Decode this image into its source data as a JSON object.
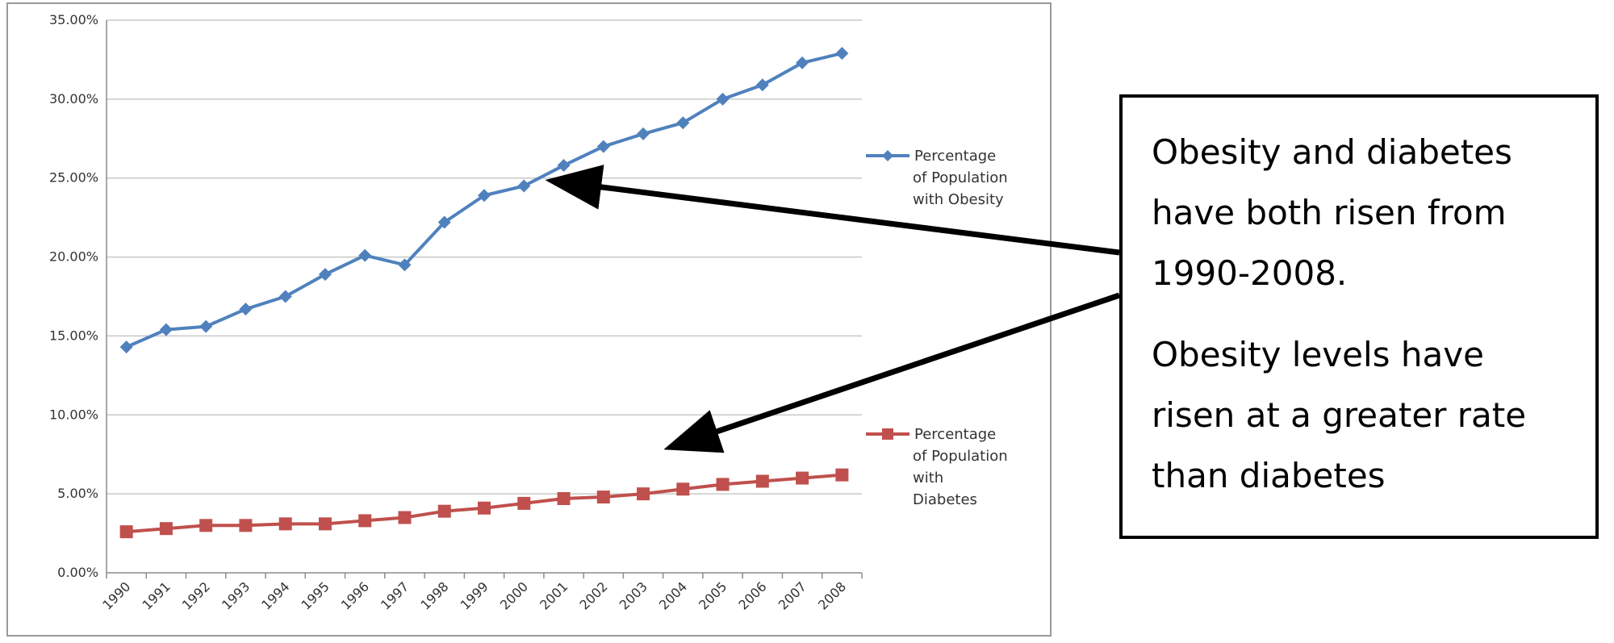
{
  "chart_data": {
    "type": "line",
    "x": [
      "1990",
      "1991",
      "1992",
      "1993",
      "1994",
      "1995",
      "1996",
      "1997",
      "1998",
      "1999",
      "2000",
      "2001",
      "2002",
      "2003",
      "2004",
      "2005",
      "2006",
      "2007",
      "2008"
    ],
    "series": [
      {
        "name": "Percentage of Population with Obesity",
        "legend_lines": [
          "Percentage",
          "of Population",
          "with Obesity"
        ],
        "color": "#4f81bd",
        "marker": "diamond",
        "values": [
          14.3,
          15.4,
          15.6,
          16.7,
          17.5,
          18.9,
          20.1,
          19.5,
          22.2,
          23.9,
          24.5,
          25.8,
          27.0,
          27.8,
          28.5,
          30.0,
          30.9,
          32.3,
          32.9
        ]
      },
      {
        "name": "Percentage of Population with Diabetes",
        "legend_lines": [
          "Percentage",
          "of Population",
          "with",
          "Diabetes"
        ],
        "color": "#c0504d",
        "marker": "square",
        "values": [
          2.6,
          2.8,
          3.0,
          3.0,
          3.1,
          3.1,
          3.3,
          3.5,
          3.9,
          4.1,
          4.4,
          4.7,
          4.8,
          5.0,
          5.3,
          5.6,
          5.8,
          6.0,
          6.2
        ]
      }
    ],
    "ylim": [
      0,
      35
    ],
    "yticks": [
      "0.00%",
      "5.00%",
      "10.00%",
      "15.00%",
      "20.00%",
      "25.00%",
      "30.00%",
      "35.00%"
    ],
    "grid": true,
    "legend": "right"
  },
  "annotation": {
    "paragraph_1": "Obesity and diabetes have both risen from 1990-2008.",
    "paragraph_2": "Obesity levels have risen at a greater rate than diabetes"
  }
}
